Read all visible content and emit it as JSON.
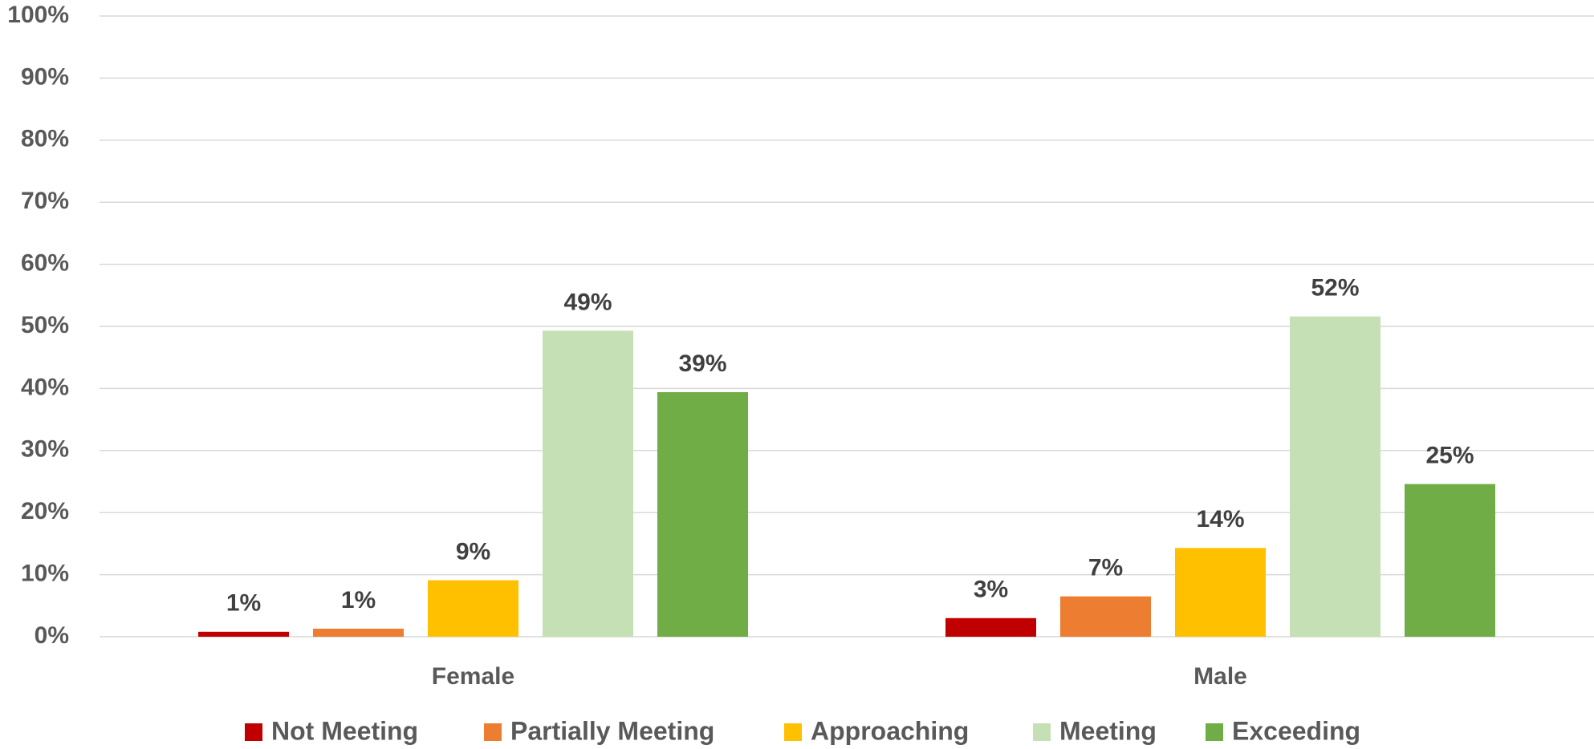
{
  "chart_data": {
    "type": "bar",
    "categories": [
      "Female",
      "Male"
    ],
    "series": [
      {
        "name": "Not Meeting",
        "color": "#c00000",
        "values": [
          0.8,
          3.0
        ],
        "value_labels": [
          "1%",
          "3%"
        ]
      },
      {
        "name": "Partially Meeting",
        "color": "#ed7d31",
        "values": [
          1.3,
          6.5
        ],
        "value_labels": [
          "1%",
          "7%"
        ]
      },
      {
        "name": "Approaching",
        "color": "#ffc000",
        "values": [
          9.1,
          14.3
        ],
        "value_labels": [
          "9%",
          "14%"
        ]
      },
      {
        "name": "Meeting",
        "color": "#c5e0b4",
        "values": [
          49.3,
          51.6
        ],
        "value_labels": [
          "49%",
          "52%"
        ]
      },
      {
        "name": "Exceeding",
        "color": "#70ad47",
        "values": [
          39.4,
          24.6
        ],
        "value_labels": [
          "39%",
          "25%"
        ]
      }
    ],
    "ylim": [
      0,
      100
    ],
    "yticks": [
      {
        "value": 0,
        "label": "0%"
      },
      {
        "value": 10,
        "label": "10%"
      },
      {
        "value": 20,
        "label": "20%"
      },
      {
        "value": 30,
        "label": "30%"
      },
      {
        "value": 40,
        "label": "40%"
      },
      {
        "value": 50,
        "label": "50%"
      },
      {
        "value": 60,
        "label": "60%"
      },
      {
        "value": 70,
        "label": "70%"
      },
      {
        "value": 80,
        "label": "80%"
      },
      {
        "value": 90,
        "label": "90%"
      },
      {
        "value": 100,
        "label": "100%"
      }
    ],
    "grid": true,
    "legend": "bottom"
  }
}
